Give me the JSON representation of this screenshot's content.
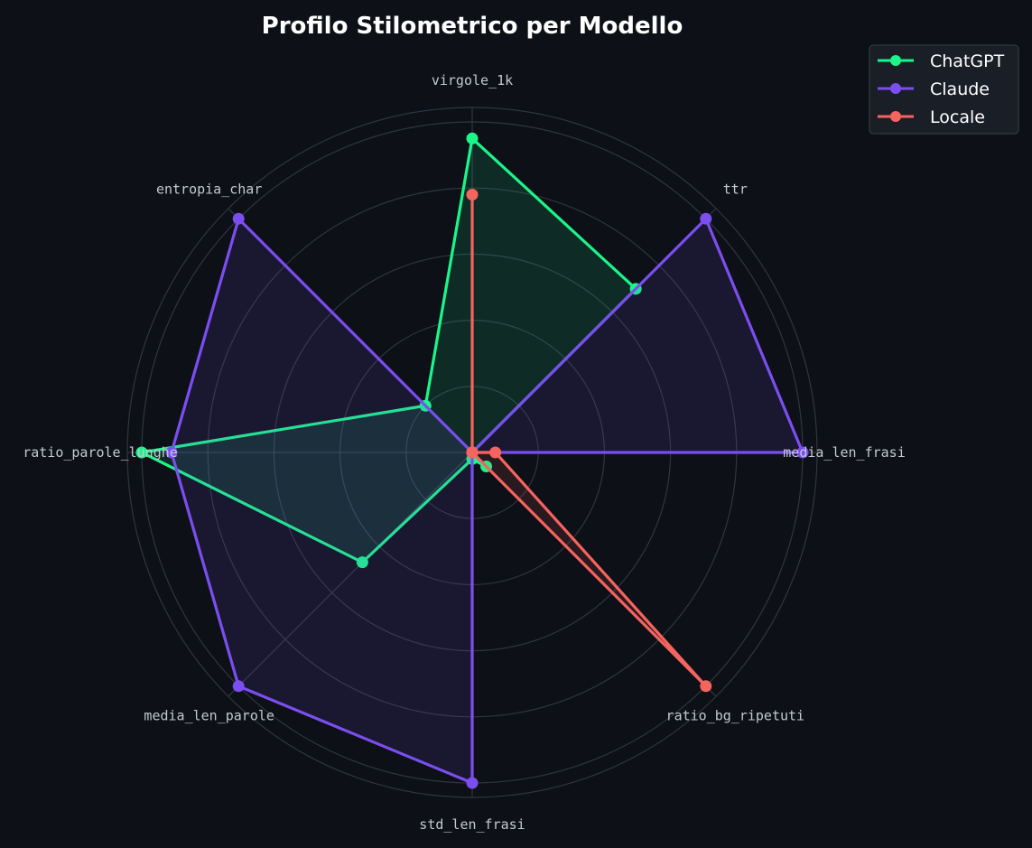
{
  "chart_data": {
    "type": "radar",
    "title": "Profilo Stilometrico per Modello",
    "axes": [
      "virgole_1k",
      "ttr",
      "media_len_frasi",
      "ratio_bg_ripetuti",
      "std_len_frasi",
      "media_len_parole",
      "ratio_parole_lunghe",
      "entropia_char"
    ],
    "rlim": [
      0,
      1
    ],
    "grid": true,
    "legend_position": "top-right",
    "series": [
      {
        "name": "ChatGPT",
        "color": "#1bf58a",
        "values": [
          0.95,
          0.7,
          0.0,
          0.06,
          0.02,
          0.47,
          1.0,
          0.2
        ]
      },
      {
        "name": "Claude",
        "color": "#7b4ef0",
        "values": [
          0.0,
          1.0,
          1.0,
          0.0,
          1.0,
          1.0,
          0.91,
          1.0
        ]
      },
      {
        "name": "Locale",
        "color": "#f5645f",
        "values": [
          0.78,
          0.0,
          0.07,
          1.0,
          0.0,
          0.0,
          0.0,
          0.0
        ]
      }
    ]
  }
}
